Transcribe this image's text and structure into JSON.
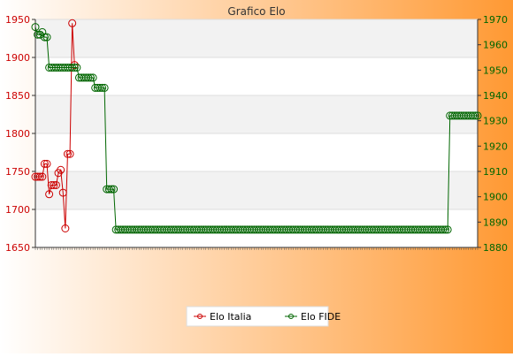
{
  "chart_data": {
    "type": "line",
    "title": "Grafico Elo",
    "xlabel": "",
    "ylabel": "",
    "y_left": {
      "ylim": [
        1650,
        1950
      ],
      "ticks": [
        1650,
        1700,
        1750,
        1800,
        1850,
        1900,
        1950
      ],
      "color": "#cc0000"
    },
    "y_right": {
      "ylim": [
        1880,
        1970
      ],
      "ticks": [
        1880,
        1890,
        1900,
        1910,
        1920,
        1930,
        1940,
        1950,
        1960,
        1970
      ],
      "color": "#006600"
    },
    "grid": true,
    "legend_position": "bottom-center",
    "x_tick_labels_note": "",
    "series": [
      {
        "name": "Elo Italia",
        "axis": "left",
        "color": "#cc0000",
        "values": [
          1743,
          1743,
          1743,
          1743,
          1760,
          1760,
          1720,
          1732,
          1732,
          1732,
          1748,
          1752,
          1722,
          1675,
          1773,
          1773,
          1945,
          1890
        ]
      },
      {
        "name": "Elo FIDE",
        "axis": "right",
        "color": "#006600",
        "values": [
          1967,
          1964,
          1964,
          1965,
          1963,
          1963,
          1951,
          1951,
          1951,
          1951,
          1951,
          1951,
          1951,
          1951,
          1951,
          1951,
          1951,
          1951,
          1951,
          1947,
          1947,
          1947,
          1947,
          1947,
          1947,
          1947,
          1943,
          1943,
          1943,
          1943,
          1943,
          1903,
          1903,
          1903,
          1903,
          1887,
          1887,
          1887,
          1887,
          1887,
          1887,
          1887,
          1887,
          1887,
          1887,
          1887,
          1887,
          1887,
          1887,
          1887,
          1887,
          1887,
          1887,
          1887,
          1887,
          1887,
          1887,
          1887,
          1887,
          1887,
          1887,
          1887,
          1887,
          1887,
          1887,
          1887,
          1887,
          1887,
          1887,
          1887,
          1887,
          1887,
          1887,
          1887,
          1887,
          1887,
          1887,
          1887,
          1887,
          1887,
          1887,
          1887,
          1887,
          1887,
          1887,
          1887,
          1887,
          1887,
          1887,
          1887,
          1887,
          1887,
          1887,
          1887,
          1887,
          1887,
          1887,
          1887,
          1887,
          1887,
          1887,
          1887,
          1887,
          1887,
          1887,
          1887,
          1887,
          1887,
          1887,
          1887,
          1887,
          1887,
          1887,
          1887,
          1887,
          1887,
          1887,
          1887,
          1887,
          1887,
          1887,
          1887,
          1887,
          1887,
          1887,
          1887,
          1887,
          1887,
          1887,
          1887,
          1887,
          1887,
          1887,
          1887,
          1887,
          1887,
          1887,
          1887,
          1887,
          1887,
          1887,
          1887,
          1887,
          1887,
          1887,
          1887,
          1887,
          1887,
          1887,
          1887,
          1887,
          1887,
          1887,
          1887,
          1887,
          1887,
          1887,
          1887,
          1887,
          1887,
          1887,
          1887,
          1887,
          1887,
          1887,
          1887,
          1887,
          1887,
          1887,
          1887,
          1887,
          1887,
          1887,
          1887,
          1887,
          1887,
          1887,
          1887,
          1887,
          1887,
          1932,
          1932,
          1932,
          1932,
          1932,
          1932,
          1932,
          1932,
          1932,
          1932,
          1932,
          1932,
          1932
        ]
      }
    ],
    "background": {
      "gradient_left": "#ffffff",
      "gradient_right": "#ff9933"
    }
  }
}
